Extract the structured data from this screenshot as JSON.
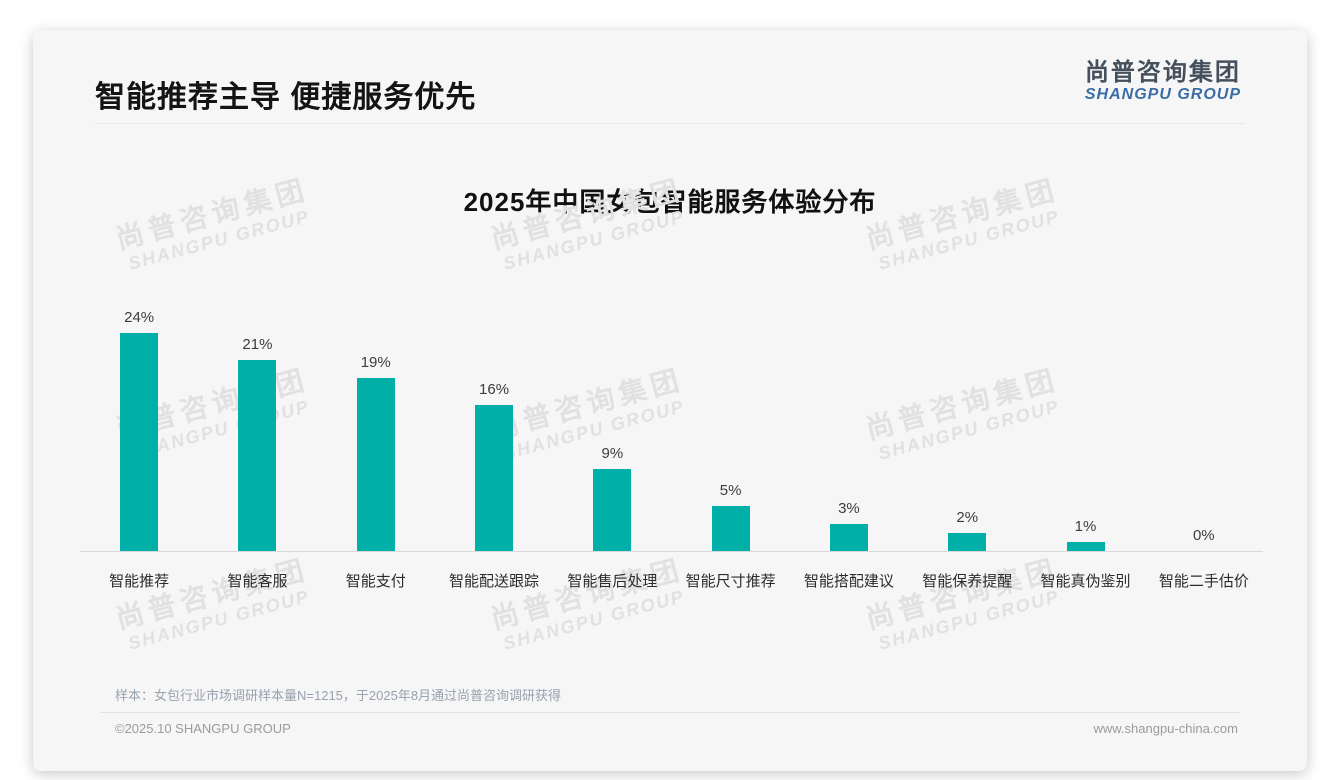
{
  "page": {
    "title": "智能推荐主导 便捷服务优先",
    "logo": {
      "cn": "尚普咨询集团",
      "en": "SHANGPU GROUP"
    },
    "watermark": {
      "cn": "尚普咨询集团",
      "en": "SHANGPU GROUP"
    },
    "footer": {
      "sample_note": "样本：女包行业市场调研样本量N=1215，于2025年8月通过尚普咨询调研获得",
      "copyright": "©2025.10 SHANGPU GROUP",
      "website": "www.shangpu-china.com"
    }
  },
  "chart_data": {
    "type": "bar",
    "title": "2025年中国女包智能服务体验分布",
    "categories": [
      "智能推荐",
      "智能客服",
      "智能支付",
      "智能配送跟踪",
      "智能售后处理",
      "智能尺寸推荐",
      "智能搭配建议",
      "智能保养提醒",
      "智能真伪鉴别",
      "智能二手估价"
    ],
    "values": [
      24,
      21,
      19,
      16,
      9,
      5,
      3,
      2,
      1,
      0
    ],
    "unit": "%",
    "bar_color": "#00b0a8",
    "value_label_color": "#3d3d3d",
    "ylim": [
      0,
      26
    ],
    "grid": false,
    "legend": "none",
    "data_labels": true,
    "xlabel": "",
    "ylabel": ""
  }
}
